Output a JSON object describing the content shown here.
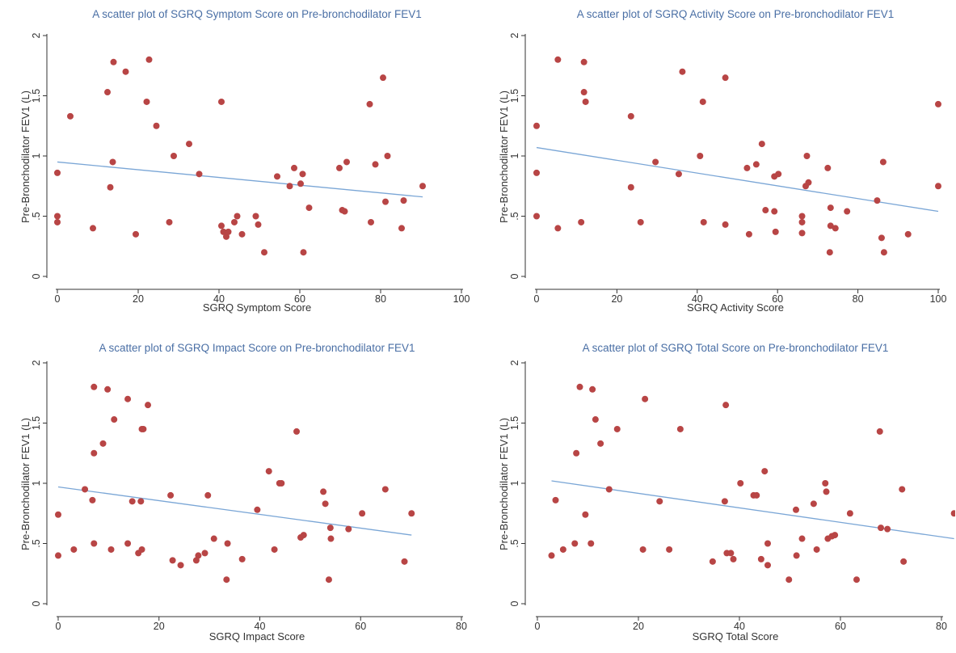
{
  "chart_data": [
    {
      "type": "scatter",
      "title": "A scatter plot of SGRQ Symptom Score on Pre-bronchodilator FEV1",
      "xlabel": "SGRQ Symptom Score",
      "ylabel": "Pre-Bronchodilator FEV1 (L)",
      "xlim": [
        0,
        100
      ],
      "ylim": [
        0,
        2
      ],
      "xticks": [
        "0",
        "20",
        "40",
        "60",
        "80",
        "100"
      ],
      "xtick_values": [
        0,
        20,
        40,
        60,
        80,
        100
      ],
      "yticks": [
        "0",
        ".5",
        "1",
        "1.5",
        "2"
      ],
      "ytick_values": [
        0,
        0.5,
        1,
        1.5,
        2
      ],
      "fit_line": [
        [
          0,
          0.95
        ],
        [
          90.4,
          0.66
        ]
      ],
      "points": [
        [
          0,
          0.86
        ],
        [
          0,
          0.5
        ],
        [
          0,
          0.45
        ],
        [
          3.2,
          1.33
        ],
        [
          8.8,
          0.4
        ],
        [
          12.4,
          1.53
        ],
        [
          13.1,
          0.74
        ],
        [
          13.7,
          0.95
        ],
        [
          13.9,
          1.78
        ],
        [
          16.9,
          1.7
        ],
        [
          19.4,
          0.35
        ],
        [
          22.1,
          1.45
        ],
        [
          22.7,
          1.8
        ],
        [
          24.5,
          1.25
        ],
        [
          27.7,
          0.45
        ],
        [
          28.8,
          1.0
        ],
        [
          32.6,
          1.1
        ],
        [
          35.1,
          0.85
        ],
        [
          40.6,
          1.45
        ],
        [
          40.6,
          0.42
        ],
        [
          41.1,
          0.37
        ],
        [
          41.8,
          0.33
        ],
        [
          42.3,
          0.37
        ],
        [
          43.8,
          0.45
        ],
        [
          44.5,
          0.5
        ],
        [
          45.7,
          0.35
        ],
        [
          49.1,
          0.5
        ],
        [
          49.7,
          0.43
        ],
        [
          51.2,
          0.2
        ],
        [
          54.4,
          0.83
        ],
        [
          57.5,
          0.75
        ],
        [
          58.6,
          0.9
        ],
        [
          60.2,
          0.77
        ],
        [
          60.7,
          0.85
        ],
        [
          60.9,
          0.2
        ],
        [
          62.3,
          0.57
        ],
        [
          69.8,
          0.9
        ],
        [
          70.5,
          0.55
        ],
        [
          71.1,
          0.54
        ],
        [
          71.6,
          0.95
        ],
        [
          77.3,
          1.43
        ],
        [
          77.6,
          0.45
        ],
        [
          78.7,
          0.93
        ],
        [
          80.6,
          1.65
        ],
        [
          81.2,
          0.62
        ],
        [
          81.7,
          1.0
        ],
        [
          85.2,
          0.4
        ],
        [
          85.7,
          0.63
        ],
        [
          90.4,
          0.75
        ]
      ]
    },
    {
      "type": "scatter",
      "title": "A scatter plot of SGRQ Activity Score on Pre-bronchodilator FEV1",
      "xlabel": "SGRQ Activity Score",
      "ylabel": "Pre-Bronchodilator FEV1 (L)",
      "xlim": [
        0,
        100
      ],
      "ylim": [
        0,
        2
      ],
      "xticks": [
        "0",
        "20",
        "40",
        "60",
        "80",
        "100"
      ],
      "xtick_values": [
        0,
        20,
        40,
        60,
        80,
        100
      ],
      "yticks": [
        "0",
        ".5",
        "1",
        "1.5",
        "2"
      ],
      "ytick_values": [
        0,
        0.5,
        1,
        1.5,
        2
      ],
      "fit_line": [
        [
          0,
          1.07
        ],
        [
          100,
          0.54
        ]
      ],
      "points": [
        [
          0,
          1.25
        ],
        [
          0,
          0.86
        ],
        [
          0,
          0.5
        ],
        [
          5.3,
          1.8
        ],
        [
          5.3,
          0.4
        ],
        [
          11.1,
          0.45
        ],
        [
          11.8,
          1.53
        ],
        [
          11.8,
          1.78
        ],
        [
          12.2,
          1.45
        ],
        [
          23.5,
          1.33
        ],
        [
          23.5,
          0.74
        ],
        [
          25.9,
          0.45
        ],
        [
          29.6,
          0.95
        ],
        [
          35.4,
          0.85
        ],
        [
          36.3,
          1.7
        ],
        [
          40.7,
          1.0
        ],
        [
          41.4,
          1.45
        ],
        [
          41.6,
          0.45
        ],
        [
          47.0,
          1.65
        ],
        [
          47.0,
          0.43
        ],
        [
          52.4,
          0.9
        ],
        [
          52.9,
          0.35
        ],
        [
          54.7,
          0.93
        ],
        [
          56.1,
          1.1
        ],
        [
          57.0,
          0.55
        ],
        [
          59.2,
          0.83
        ],
        [
          59.2,
          0.54
        ],
        [
          59.5,
          0.37
        ],
        [
          60.2,
          0.85
        ],
        [
          66.1,
          0.5
        ],
        [
          66.1,
          0.45
        ],
        [
          66.1,
          0.36
        ],
        [
          67.0,
          0.75
        ],
        [
          67.3,
          1.0
        ],
        [
          67.7,
          0.78
        ],
        [
          72.5,
          0.9
        ],
        [
          73.0,
          0.2
        ],
        [
          73.2,
          0.42
        ],
        [
          73.2,
          0.57
        ],
        [
          74.4,
          0.4
        ],
        [
          77.3,
          0.54
        ],
        [
          84.8,
          0.63
        ],
        [
          85.9,
          0.32
        ],
        [
          86.3,
          0.95
        ],
        [
          86.5,
          0.2
        ],
        [
          92.5,
          0.35
        ],
        [
          100,
          1.43
        ],
        [
          100,
          0.75
        ]
      ]
    },
    {
      "type": "scatter",
      "title": "A scatter plot of SGRQ Impact Score on Pre-bronchodilator FEV1",
      "xlabel": "SGRQ Impact Score",
      "ylabel": "Pre-Bronchodilator FEV1 (L)",
      "xlim": [
        0,
        80
      ],
      "ylim": [
        0,
        2
      ],
      "xticks": [
        "0",
        "20",
        "40",
        "60",
        "80"
      ],
      "xtick_values": [
        0,
        20,
        40,
        60,
        80
      ],
      "yticks": [
        "0",
        ".5",
        "1",
        "1.5",
        "2"
      ],
      "ytick_values": [
        0,
        0.5,
        1,
        1.5,
        2
      ],
      "fit_line": [
        [
          0,
          0.97
        ],
        [
          70.1,
          0.57
        ]
      ],
      "points": [
        [
          0,
          0.74
        ],
        [
          0,
          0.4
        ],
        [
          3.1,
          0.45
        ],
        [
          5.3,
          0.95
        ],
        [
          6.8,
          0.86
        ],
        [
          7.1,
          0.5
        ],
        [
          7.1,
          1.8
        ],
        [
          7.1,
          1.25
        ],
        [
          8.9,
          1.33
        ],
        [
          9.8,
          1.78
        ],
        [
          10.5,
          0.45
        ],
        [
          11.1,
          1.53
        ],
        [
          13.8,
          1.7
        ],
        [
          13.8,
          0.5
        ],
        [
          14.7,
          0.85
        ],
        [
          15.9,
          0.42
        ],
        [
          16.4,
          0.85
        ],
        [
          16.6,
          0.45
        ],
        [
          16.6,
          1.45
        ],
        [
          16.9,
          1.45
        ],
        [
          17.8,
          1.65
        ],
        [
          22.3,
          0.9
        ],
        [
          22.7,
          0.36
        ],
        [
          24.3,
          0.32
        ],
        [
          27.4,
          0.36
        ],
        [
          27.8,
          0.4
        ],
        [
          29.1,
          0.42
        ],
        [
          29.7,
          0.9
        ],
        [
          30.9,
          0.54
        ],
        [
          33.4,
          0.2
        ],
        [
          33.6,
          0.5
        ],
        [
          36.5,
          0.37
        ],
        [
          39.5,
          0.78
        ],
        [
          41.8,
          1.1
        ],
        [
          42.9,
          0.45
        ],
        [
          43.9,
          1.0
        ],
        [
          44.3,
          1.0
        ],
        [
          47.3,
          1.43
        ],
        [
          48.1,
          0.55
        ],
        [
          48.7,
          0.57
        ],
        [
          52.6,
          0.93
        ],
        [
          53.0,
          0.83
        ],
        [
          53.7,
          0.2
        ],
        [
          54.0,
          0.63
        ],
        [
          54.1,
          0.54
        ],
        [
          57.6,
          0.62
        ],
        [
          60.3,
          0.75
        ],
        [
          64.9,
          0.95
        ],
        [
          68.7,
          0.35
        ],
        [
          70.1,
          0.75
        ]
      ]
    },
    {
      "type": "scatter",
      "title": "A scatter plot of SGRQ Total Score on Pre-bronchodilator FEV1",
      "xlabel": "SGRQ Total Score",
      "ylabel": "Pre-Bronchodilator FEV1 (L)",
      "xlim": [
        0,
        82.5
      ],
      "ylim": [
        0,
        2
      ],
      "xticks": [
        "0",
        "20",
        "40",
        "60",
        "80"
      ],
      "xtick_values": [
        0,
        20,
        40,
        60,
        80
      ],
      "yticks": [
        "0",
        ".5",
        "1",
        "1.5",
        "2"
      ],
      "ytick_values": [
        0,
        0.5,
        1,
        1.5,
        2
      ],
      "fit_line": [
        [
          2.8,
          1.02
        ],
        [
          82.5,
          0.54
        ]
      ],
      "points": [
        [
          2.8,
          0.4
        ],
        [
          3.6,
          0.86
        ],
        [
          5.1,
          0.45
        ],
        [
          7.4,
          0.5
        ],
        [
          7.7,
          1.25
        ],
        [
          8.4,
          1.8
        ],
        [
          9.5,
          0.74
        ],
        [
          10.6,
          0.5
        ],
        [
          10.9,
          1.78
        ],
        [
          11.5,
          1.53
        ],
        [
          12.5,
          1.33
        ],
        [
          14.2,
          0.95
        ],
        [
          15.8,
          1.45
        ],
        [
          20.9,
          0.45
        ],
        [
          21.3,
          1.7
        ],
        [
          24.2,
          0.85
        ],
        [
          26.1,
          0.45
        ],
        [
          28.3,
          1.45
        ],
        [
          34.7,
          0.35
        ],
        [
          37.1,
          0.85
        ],
        [
          37.3,
          1.65
        ],
        [
          37.5,
          0.42
        ],
        [
          38.3,
          0.42
        ],
        [
          38.8,
          0.37
        ],
        [
          40.2,
          1.0
        ],
        [
          42.8,
          0.9
        ],
        [
          43.4,
          0.9
        ],
        [
          44.3,
          0.37
        ],
        [
          45.0,
          1.1
        ],
        [
          45.6,
          0.5
        ],
        [
          45.6,
          0.32
        ],
        [
          49.8,
          0.2
        ],
        [
          51.2,
          0.78
        ],
        [
          51.3,
          0.4
        ],
        [
          52.4,
          0.54
        ],
        [
          54.7,
          0.83
        ],
        [
          55.3,
          0.45
        ],
        [
          57.0,
          1.0
        ],
        [
          57.2,
          0.93
        ],
        [
          57.5,
          0.54
        ],
        [
          58.3,
          0.56
        ],
        [
          58.9,
          0.57
        ],
        [
          61.9,
          0.75
        ],
        [
          63.2,
          0.2
        ],
        [
          67.8,
          1.43
        ],
        [
          68.0,
          0.63
        ],
        [
          69.3,
          0.62
        ],
        [
          72.2,
          0.95
        ],
        [
          72.5,
          0.35
        ],
        [
          82.5,
          0.75
        ]
      ]
    }
  ],
  "colors": {
    "point": "#b84545",
    "fit_line": "#7aa6d6",
    "axis": "#333333",
    "title": "#4a6fa5"
  }
}
